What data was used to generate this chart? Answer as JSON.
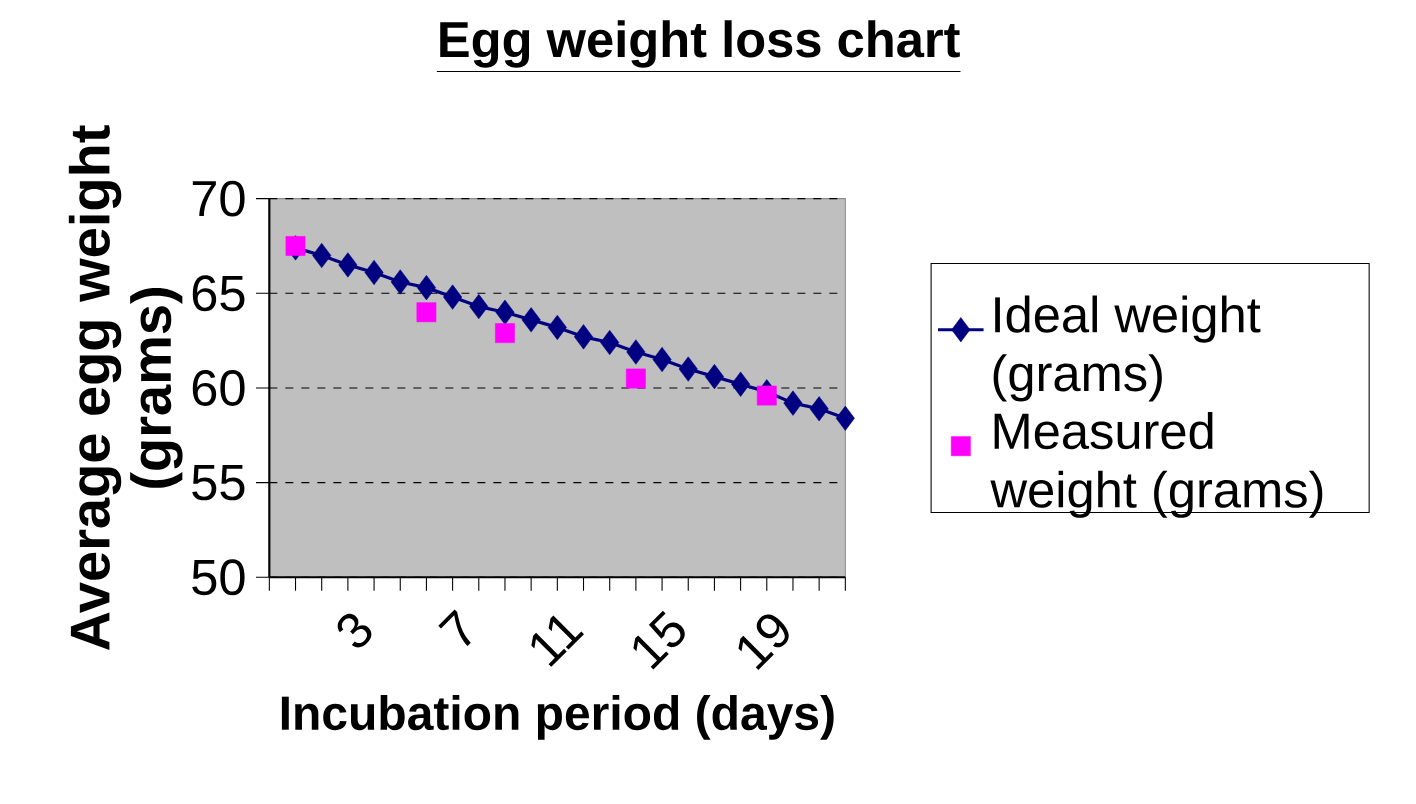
{
  "chart_data": {
    "type": "line",
    "title": "Egg weight loss chart",
    "xlabel": "Incubation period (days)",
    "ylabel": "Average egg weight (grams)",
    "categories": [
      null,
      null,
      null,
      "3",
      null,
      null,
      null,
      "7",
      null,
      null,
      null,
      "11",
      null,
      null,
      null,
      "15",
      null,
      null,
      null,
      "19",
      null,
      null,
      null
    ],
    "series": [
      {
        "name": "Ideal weight (grams)",
        "color": "#000080",
        "marker": "diamond",
        "values": [
          null,
          67.4,
          67.0,
          66.5,
          66.1,
          65.6,
          65.3,
          64.8,
          64.3,
          64.0,
          63.6,
          63.2,
          62.7,
          62.4,
          61.9,
          61.5,
          61.0,
          60.6,
          60.2,
          59.8,
          59.2,
          58.9,
          58.4
        ]
      },
      {
        "name": "Measured weight (grams)",
        "color": "#ff00ff",
        "type": "scatter",
        "marker": "square",
        "values": [
          null,
          67.5,
          null,
          null,
          null,
          null,
          64.0,
          null,
          null,
          62.9,
          null,
          null,
          null,
          null,
          60.5,
          null,
          null,
          null,
          null,
          59.6,
          null,
          null,
          null
        ]
      }
    ],
    "ylim": [
      50,
      70
    ],
    "yticks": [
      50,
      55,
      60,
      65,
      70
    ],
    "grid": "y",
    "legend": "right"
  }
}
